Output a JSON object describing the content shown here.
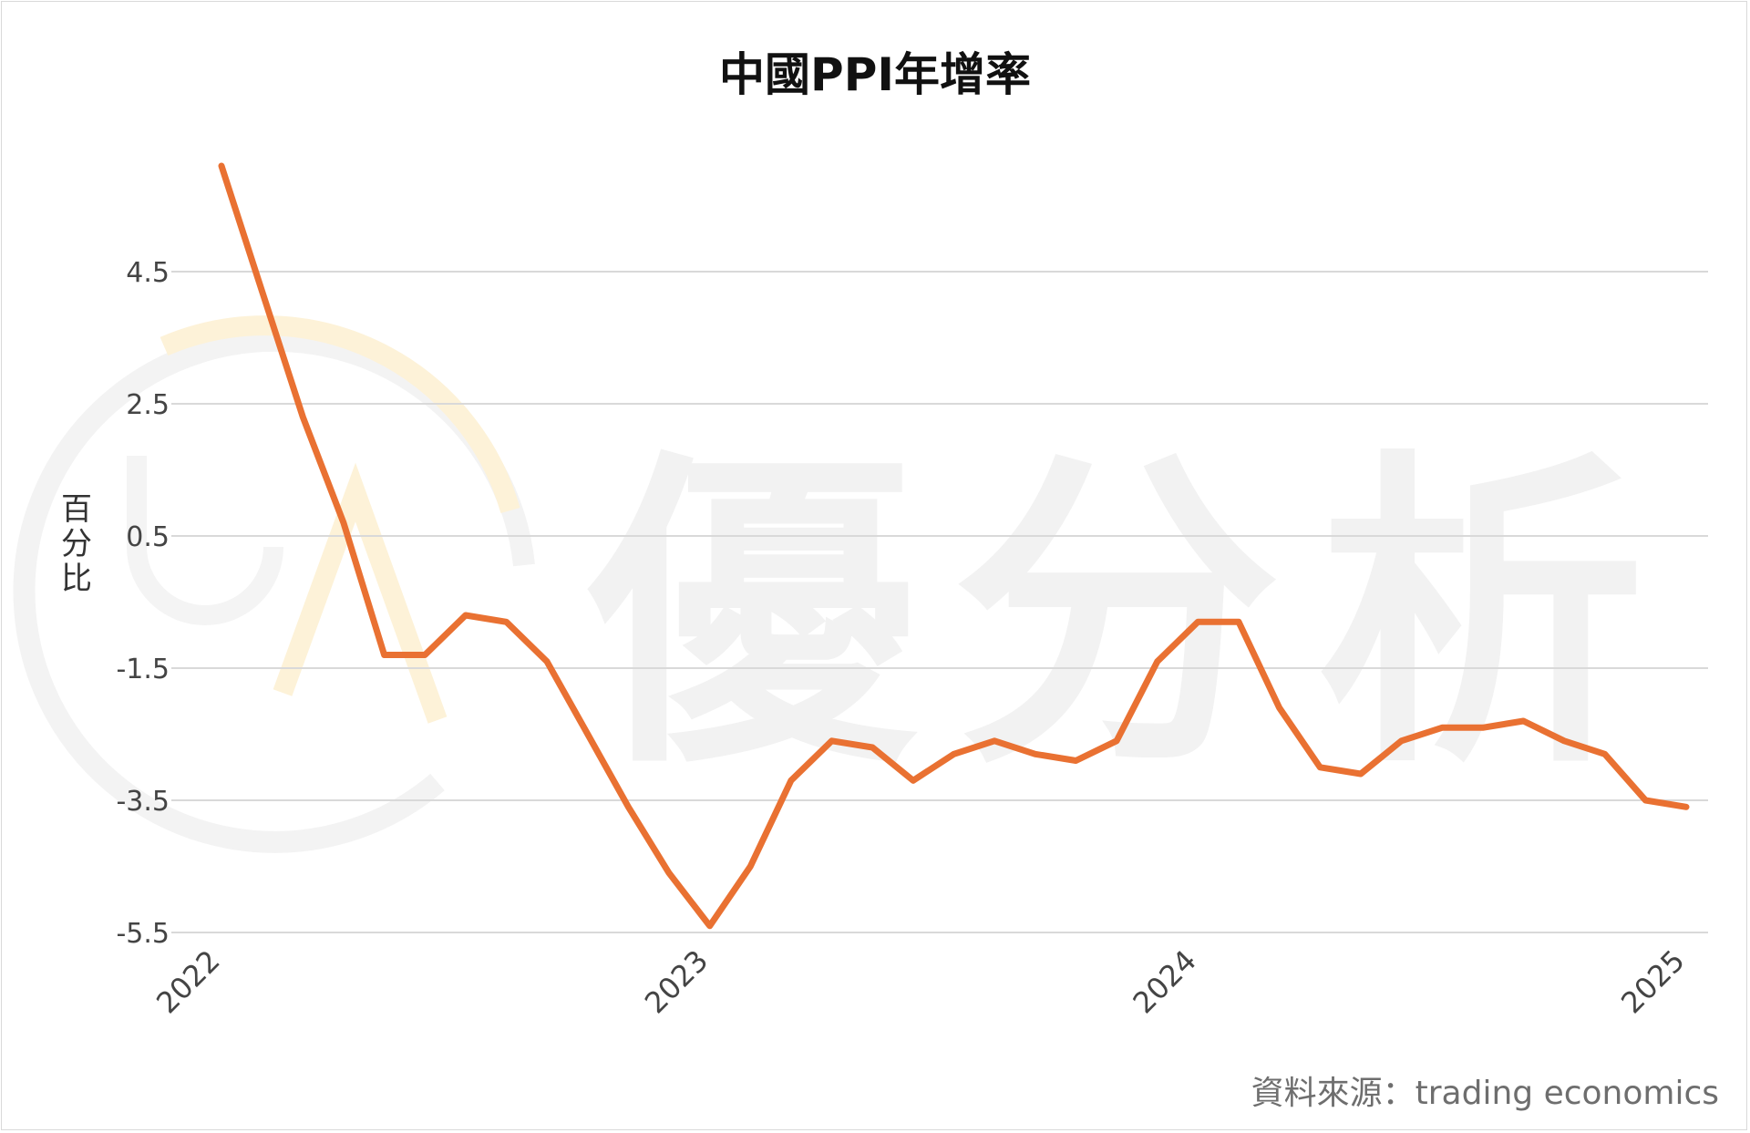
{
  "chart_data": {
    "type": "line",
    "title": "中國PPI年增率",
    "ylabel": "百分比",
    "xlabel": "",
    "source": "資料來源：trading economics",
    "watermark": "優分析",
    "ylim": [
      -5.5,
      5.5
    ],
    "y_ticks": [
      "4.5",
      "2.5",
      "0.5",
      "-1.5",
      "-3.5",
      "-5.5"
    ],
    "y_tick_values": [
      4.5,
      2.5,
      0.5,
      -1.5,
      -3.5,
      -5.5
    ],
    "x_ticks": [
      "2022",
      "2023",
      "2024",
      "2025"
    ],
    "x_tick_positions": [
      0,
      12,
      24,
      36
    ],
    "grid": true,
    "line_color": "#E97132",
    "series": [
      {
        "values": [
          6.1,
          4.2,
          2.3,
          0.7,
          -1.3,
          -1.3,
          -0.7,
          -0.8,
          -1.4,
          -2.5,
          -3.6,
          -4.6,
          -5.4,
          -4.5,
          -3.2,
          -2.6,
          -2.7,
          -3.2,
          -2.8,
          -2.6,
          -2.8,
          -2.9,
          -2.6,
          -1.4,
          -0.8,
          -0.8,
          -2.1,
          -3.0,
          -3.1,
          -2.6,
          -2.4,
          -2.4,
          -2.3,
          -2.6,
          -2.8,
          -3.5,
          -3.6
        ]
      }
    ]
  }
}
